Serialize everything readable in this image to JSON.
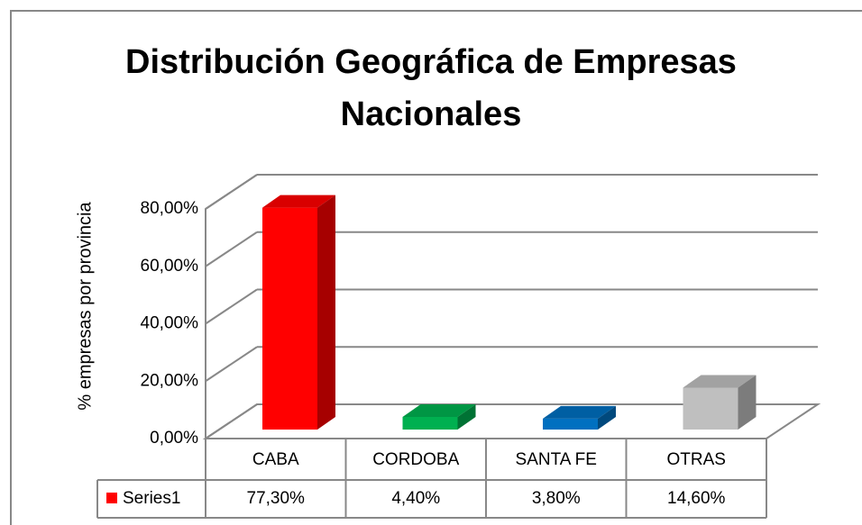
{
  "chart_data": {
    "type": "bar3d",
    "title": "Distribución Geográfica de Empresas Nacionales",
    "y_label": "% empresas por provincia",
    "categories": [
      "CABA",
      "CORDOBA",
      "SANTA FE",
      "OTRAS"
    ],
    "series": [
      {
        "name": "Series1",
        "values": [
          77.3,
          4.4,
          3.8,
          14.6
        ],
        "value_labels": [
          "77,30%",
          "4,40%",
          "3,80%",
          "14,60%"
        ],
        "colors": [
          "#ff0000",
          "#00b050",
          "#0070c0",
          "#bfbfbf"
        ]
      }
    ],
    "ylim": [
      0,
      80
    ],
    "yticks": [
      {
        "value": 0,
        "label": "0,00%"
      },
      {
        "value": 20,
        "label": "20,00%"
      },
      {
        "value": 40,
        "label": "40,00%"
      },
      {
        "value": 60,
        "label": "60,00%"
      },
      {
        "value": 80,
        "label": "80,00%"
      }
    ],
    "grid": true
  }
}
